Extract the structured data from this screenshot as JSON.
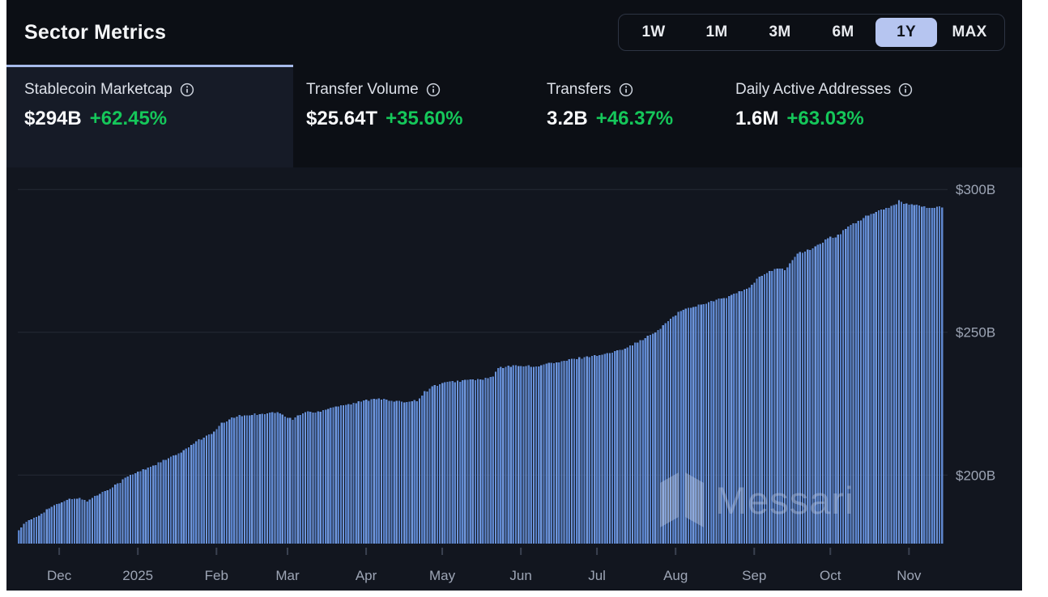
{
  "header": {
    "title": "Sector Metrics",
    "range_options": [
      "1W",
      "1M",
      "3M",
      "6M",
      "1Y",
      "MAX"
    ],
    "selected_range": "1Y"
  },
  "metrics": [
    {
      "label": "Stablecoin Marketcap",
      "value": "$294B",
      "change": "+62.45%",
      "selected": true
    },
    {
      "label": "Transfer Volume",
      "value": "$25.64T",
      "change": "+35.60%",
      "selected": false
    },
    {
      "label": "Transfers",
      "value": "3.2B",
      "change": "+46.37%",
      "selected": false
    },
    {
      "label": "Daily Active Addresses",
      "value": "1.6M",
      "change": "+63.03%",
      "selected": false
    }
  ],
  "watermark": {
    "text": "Messari"
  },
  "colors": {
    "accent_green": "#15c75a",
    "bar_blues": [
      "#5981c8",
      "#6089d1",
      "#6f96db"
    ],
    "selected_pill": "#b6c5f0",
    "selected_tab_border": "#a6baea",
    "grid": "#242a37",
    "axis_label": "#9da5b5",
    "tick": "#3a4150"
  },
  "chart_data": {
    "type": "bar",
    "title": "Stablecoin Marketcap (1Y, daily)",
    "unit": "USD billions",
    "grid": true,
    "legend_position": "none",
    "days_total": 365,
    "x_tick_labels": [
      "Dec",
      "2025",
      "Feb",
      "Mar",
      "Apr",
      "May",
      "Jun",
      "Jul",
      "Aug",
      "Sep",
      "Oct",
      "Nov"
    ],
    "x_tick_days": [
      16,
      47,
      78,
      106,
      137,
      167,
      198,
      228,
      259,
      290,
      320,
      351
    ],
    "y_tick_labels": [
      "$300B",
      "$250B",
      "$200B"
    ],
    "y_tick_values": [
      300,
      250,
      200
    ],
    "ylim": [
      176,
      302
    ],
    "start_value_b": 181,
    "end_value_b": 294,
    "series": [
      {
        "name": "Stablecoin Marketcap ($B)",
        "anchors_day_value": [
          [
            0,
            181
          ],
          [
            3,
            183.5
          ],
          [
            8,
            186
          ],
          [
            12,
            188.5
          ],
          [
            16,
            190
          ],
          [
            20,
            191.5
          ],
          [
            23,
            192
          ],
          [
            27,
            191
          ],
          [
            31,
            193
          ],
          [
            35,
            195
          ],
          [
            39,
            197
          ],
          [
            43,
            199.5
          ],
          [
            47,
            201
          ],
          [
            52,
            203
          ],
          [
            57,
            205
          ],
          [
            62,
            207
          ],
          [
            66,
            209
          ],
          [
            70,
            212
          ],
          [
            74,
            213.5
          ],
          [
            77,
            215
          ],
          [
            80,
            218
          ],
          [
            85,
            220.4
          ],
          [
            92,
            221.2
          ],
          [
            99,
            221.8
          ],
          [
            102,
            222
          ],
          [
            105,
            220.5
          ],
          [
            108,
            219.5
          ],
          [
            111,
            221.3
          ],
          [
            114,
            222.3
          ],
          [
            117,
            221.8
          ],
          [
            121,
            223.2
          ],
          [
            126,
            224.3
          ],
          [
            131,
            224.9
          ],
          [
            136,
            226
          ],
          [
            139,
            226.6
          ],
          [
            142,
            227
          ],
          [
            145,
            226.2
          ],
          [
            149,
            225.6
          ],
          [
            153,
            225.8
          ],
          [
            157,
            226.2
          ],
          [
            160,
            229
          ],
          [
            163,
            231
          ],
          [
            167,
            232.2
          ],
          [
            172,
            232.8
          ],
          [
            176,
            233.2
          ],
          [
            184,
            233.7
          ],
          [
            187,
            234.5
          ],
          [
            189,
            237.5
          ],
          [
            193,
            238
          ],
          [
            198,
            238.5
          ],
          [
            203,
            237.8
          ],
          [
            208,
            239
          ],
          [
            213,
            239.5
          ],
          [
            218,
            240.5
          ],
          [
            223,
            241.3
          ],
          [
            228,
            242
          ],
          [
            232,
            242.5
          ],
          [
            236,
            243.5
          ],
          [
            240,
            245
          ],
          [
            244,
            246.5
          ],
          [
            248,
            248.5
          ],
          [
            252,
            250.5
          ],
          [
            256,
            254
          ],
          [
            260,
            257
          ],
          [
            264,
            258.5
          ],
          [
            268,
            259.5
          ],
          [
            272,
            260.5
          ],
          [
            276,
            261.5
          ],
          [
            280,
            262.5
          ],
          [
            285,
            264.5
          ],
          [
            288,
            265.5
          ],
          [
            291,
            268.5
          ],
          [
            295,
            271
          ],
          [
            299,
            272.5
          ],
          [
            302,
            271.8
          ],
          [
            307,
            277.5
          ],
          [
            312,
            279
          ],
          [
            316,
            281
          ],
          [
            320,
            283.5
          ],
          [
            322,
            283
          ],
          [
            327,
            287
          ],
          [
            331,
            289
          ],
          [
            335,
            291
          ],
          [
            339,
            292.5
          ],
          [
            343,
            293.5
          ],
          [
            346,
            295
          ],
          [
            347,
            296.5
          ],
          [
            349,
            295
          ],
          [
            352,
            295
          ],
          [
            354,
            294.5
          ],
          [
            357,
            294
          ],
          [
            360,
            293.5
          ],
          [
            363,
            293.8
          ],
          [
            364,
            294
          ]
        ]
      }
    ]
  }
}
